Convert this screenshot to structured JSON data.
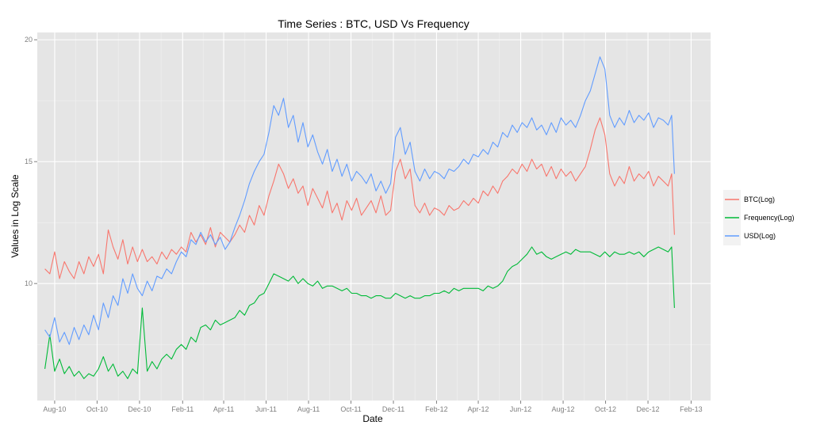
{
  "chart_data": {
    "type": "line",
    "title": "Time Series : BTC, USD Vs Frequency",
    "xlabel": "Date",
    "ylabel": "Values in Log Scale",
    "xlim": [
      "2010-07-07",
      "2013-03-01"
    ],
    "ylim": [
      5.2,
      20.3
    ],
    "x_ticks": [
      {
        "date": "2010-08-01",
        "label": "Aug-10"
      },
      {
        "date": "2010-10-01",
        "label": "Oct-10"
      },
      {
        "date": "2010-12-01",
        "label": "Dec-10"
      },
      {
        "date": "2011-02-01",
        "label": "Feb-11"
      },
      {
        "date": "2011-04-01",
        "label": "Apr-11"
      },
      {
        "date": "2011-06-01",
        "label": "Jun-11"
      },
      {
        "date": "2011-08-01",
        "label": "Aug-11"
      },
      {
        "date": "2011-10-01",
        "label": "Oct-11"
      },
      {
        "date": "2011-12-01",
        "label": "Dec-11"
      },
      {
        "date": "2012-02-01",
        "label": "Feb-12"
      },
      {
        "date": "2012-04-01",
        "label": "Apr-12"
      },
      {
        "date": "2012-06-01",
        "label": "Jun-12"
      },
      {
        "date": "2012-08-01",
        "label": "Aug-12"
      },
      {
        "date": "2012-10-01",
        "label": "Oct-12"
      },
      {
        "date": "2012-12-01",
        "label": "Dec-12"
      },
      {
        "date": "2013-02-01",
        "label": "Feb-13"
      }
    ],
    "y_ticks": [
      10,
      15,
      20
    ],
    "grid": true,
    "legend_position": "right",
    "series": [
      {
        "name": "BTC(Log)",
        "color": "#f8766d",
        "x": [
          "2010-07-18",
          "2010-07-25",
          "2010-08-01",
          "2010-08-08",
          "2010-08-15",
          "2010-08-22",
          "2010-08-29",
          "2010-09-05",
          "2010-09-12",
          "2010-09-19",
          "2010-09-26",
          "2010-10-03",
          "2010-10-10",
          "2010-10-17",
          "2010-10-24",
          "2010-10-31",
          "2010-11-07",
          "2010-11-14",
          "2010-11-21",
          "2010-11-28",
          "2010-12-05",
          "2010-12-12",
          "2010-12-19",
          "2010-12-26",
          "2011-01-02",
          "2011-01-09",
          "2011-01-16",
          "2011-01-23",
          "2011-01-30",
          "2011-02-06",
          "2011-02-13",
          "2011-02-20",
          "2011-02-27",
          "2011-03-06",
          "2011-03-13",
          "2011-03-20",
          "2011-03-27",
          "2011-04-03",
          "2011-04-10",
          "2011-04-17",
          "2011-04-24",
          "2011-05-01",
          "2011-05-08",
          "2011-05-15",
          "2011-05-22",
          "2011-05-29",
          "2011-06-05",
          "2011-06-12",
          "2011-06-19",
          "2011-06-26",
          "2011-07-03",
          "2011-07-10",
          "2011-07-17",
          "2011-07-24",
          "2011-07-31",
          "2011-08-07",
          "2011-08-14",
          "2011-08-21",
          "2011-08-28",
          "2011-09-04",
          "2011-09-11",
          "2011-09-18",
          "2011-09-25",
          "2011-10-02",
          "2011-10-09",
          "2011-10-16",
          "2011-10-23",
          "2011-10-30",
          "2011-11-06",
          "2011-11-13",
          "2011-11-20",
          "2011-11-27",
          "2011-12-04",
          "2011-12-11",
          "2011-12-18",
          "2011-12-25",
          "2012-01-01",
          "2012-01-08",
          "2012-01-15",
          "2012-01-22",
          "2012-01-29",
          "2012-02-05",
          "2012-02-12",
          "2012-02-19",
          "2012-02-26",
          "2012-03-04",
          "2012-03-11",
          "2012-03-18",
          "2012-03-25",
          "2012-04-01",
          "2012-04-08",
          "2012-04-15",
          "2012-04-22",
          "2012-04-29",
          "2012-05-06",
          "2012-05-13",
          "2012-05-20",
          "2012-05-27",
          "2012-06-03",
          "2012-06-10",
          "2012-06-17",
          "2012-06-24",
          "2012-07-01",
          "2012-07-08",
          "2012-07-15",
          "2012-07-22",
          "2012-07-29",
          "2012-08-05",
          "2012-08-12",
          "2012-08-19",
          "2012-08-26",
          "2012-09-02",
          "2012-09-09",
          "2012-09-16",
          "2012-09-23",
          "2012-09-30",
          "2012-10-07",
          "2012-10-14",
          "2012-10-21",
          "2012-10-28",
          "2012-11-04",
          "2012-11-11",
          "2012-11-18",
          "2012-11-25",
          "2012-12-02",
          "2012-12-09",
          "2012-12-16",
          "2012-12-23",
          "2012-12-30",
          "2013-01-04",
          "2013-01-08"
        ],
        "values": [
          10.6,
          10.4,
          11.3,
          10.2,
          10.9,
          10.5,
          10.2,
          10.9,
          10.4,
          11.1,
          10.7,
          11.2,
          10.4,
          12.2,
          11.5,
          11.0,
          11.8,
          10.8,
          11.5,
          10.9,
          11.4,
          10.9,
          11.1,
          10.8,
          11.3,
          11.0,
          11.4,
          11.2,
          11.5,
          11.3,
          12.1,
          11.7,
          12.0,
          11.6,
          12.3,
          11.5,
          12.1,
          11.9,
          11.7,
          12.0,
          12.4,
          12.1,
          12.8,
          12.4,
          13.2,
          12.8,
          13.6,
          14.2,
          14.9,
          14.5,
          13.9,
          14.3,
          13.7,
          14.0,
          13.2,
          13.9,
          13.5,
          13.1,
          13.8,
          12.9,
          13.3,
          12.6,
          13.4,
          13.0,
          13.5,
          12.8,
          13.1,
          13.4,
          12.9,
          13.6,
          12.8,
          13.0,
          14.6,
          15.1,
          14.3,
          14.7,
          13.2,
          12.9,
          13.3,
          12.8,
          13.1,
          13.0,
          12.8,
          13.2,
          13.0,
          13.1,
          13.4,
          13.2,
          13.5,
          13.3,
          13.8,
          13.6,
          14.0,
          13.7,
          14.2,
          14.4,
          14.7,
          14.5,
          14.9,
          14.6,
          15.1,
          14.7,
          14.9,
          14.4,
          14.8,
          14.3,
          14.7,
          14.4,
          14.6,
          14.2,
          14.5,
          14.8,
          15.5,
          16.3,
          16.8,
          16.1,
          14.5,
          14.0,
          14.4,
          14.1,
          14.8,
          14.2,
          14.5,
          14.3,
          14.6,
          14.0,
          14.4,
          14.2,
          14.0,
          14.5,
          12.0
        ]
      },
      {
        "name": "Frequency(Log)",
        "color": "#00ba38",
        "x": [
          "2010-07-18",
          "2010-07-25",
          "2010-08-01",
          "2010-08-08",
          "2010-08-15",
          "2010-08-22",
          "2010-08-29",
          "2010-09-05",
          "2010-09-12",
          "2010-09-19",
          "2010-09-26",
          "2010-10-03",
          "2010-10-10",
          "2010-10-17",
          "2010-10-24",
          "2010-10-31",
          "2010-11-07",
          "2010-11-14",
          "2010-11-21",
          "2010-11-28",
          "2010-12-05",
          "2010-12-12",
          "2010-12-19",
          "2010-12-26",
          "2011-01-02",
          "2011-01-09",
          "2011-01-16",
          "2011-01-23",
          "2011-01-30",
          "2011-02-06",
          "2011-02-13",
          "2011-02-20",
          "2011-02-27",
          "2011-03-06",
          "2011-03-13",
          "2011-03-20",
          "2011-03-27",
          "2011-04-03",
          "2011-04-10",
          "2011-04-17",
          "2011-04-24",
          "2011-05-01",
          "2011-05-08",
          "2011-05-15",
          "2011-05-22",
          "2011-05-29",
          "2011-06-05",
          "2011-06-12",
          "2011-06-19",
          "2011-06-26",
          "2011-07-03",
          "2011-07-10",
          "2011-07-17",
          "2011-07-24",
          "2011-07-31",
          "2011-08-07",
          "2011-08-14",
          "2011-08-21",
          "2011-08-28",
          "2011-09-04",
          "2011-09-11",
          "2011-09-18",
          "2011-09-25",
          "2011-10-02",
          "2011-10-09",
          "2011-10-16",
          "2011-10-23",
          "2011-10-30",
          "2011-11-06",
          "2011-11-13",
          "2011-11-20",
          "2011-11-27",
          "2011-12-04",
          "2011-12-11",
          "2011-12-18",
          "2011-12-25",
          "2012-01-01",
          "2012-01-08",
          "2012-01-15",
          "2012-01-22",
          "2012-01-29",
          "2012-02-05",
          "2012-02-12",
          "2012-02-19",
          "2012-02-26",
          "2012-03-04",
          "2012-03-11",
          "2012-03-18",
          "2012-03-25",
          "2012-04-01",
          "2012-04-08",
          "2012-04-15",
          "2012-04-22",
          "2012-04-29",
          "2012-05-06",
          "2012-05-13",
          "2012-05-20",
          "2012-05-27",
          "2012-06-03",
          "2012-06-10",
          "2012-06-17",
          "2012-06-24",
          "2012-07-01",
          "2012-07-08",
          "2012-07-15",
          "2012-07-22",
          "2012-07-29",
          "2012-08-05",
          "2012-08-12",
          "2012-08-19",
          "2012-08-26",
          "2012-09-02",
          "2012-09-09",
          "2012-09-16",
          "2012-09-23",
          "2012-09-30",
          "2012-10-07",
          "2012-10-14",
          "2012-10-21",
          "2012-10-28",
          "2012-11-04",
          "2012-11-11",
          "2012-11-18",
          "2012-11-25",
          "2012-12-02",
          "2012-12-09",
          "2012-12-16",
          "2012-12-23",
          "2012-12-30",
          "2013-01-04",
          "2013-01-08"
        ],
        "values": [
          6.5,
          7.9,
          6.4,
          6.9,
          6.3,
          6.6,
          6.2,
          6.4,
          6.1,
          6.3,
          6.2,
          6.5,
          7.0,
          6.4,
          6.7,
          6.2,
          6.4,
          6.1,
          6.5,
          6.3,
          9.0,
          6.4,
          6.8,
          6.5,
          6.9,
          7.1,
          6.9,
          7.3,
          7.5,
          7.3,
          7.8,
          7.6,
          8.2,
          8.3,
          8.1,
          8.5,
          8.3,
          8.4,
          8.5,
          8.6,
          8.9,
          8.7,
          9.1,
          9.2,
          9.5,
          9.6,
          10.0,
          10.4,
          10.3,
          10.2,
          10.1,
          10.3,
          10.0,
          10.2,
          10.0,
          9.9,
          10.1,
          9.8,
          9.9,
          9.9,
          9.8,
          9.7,
          9.8,
          9.6,
          9.6,
          9.5,
          9.5,
          9.4,
          9.5,
          9.5,
          9.4,
          9.4,
          9.6,
          9.5,
          9.4,
          9.5,
          9.4,
          9.4,
          9.5,
          9.5,
          9.6,
          9.6,
          9.7,
          9.6,
          9.8,
          9.7,
          9.8,
          9.8,
          9.8,
          9.8,
          9.7,
          9.9,
          9.8,
          9.9,
          10.1,
          10.5,
          10.7,
          10.8,
          11.0,
          11.2,
          11.5,
          11.2,
          11.3,
          11.1,
          11.0,
          11.1,
          11.2,
          11.3,
          11.2,
          11.4,
          11.3,
          11.3,
          11.3,
          11.2,
          11.1,
          11.3,
          11.1,
          11.3,
          11.2,
          11.2,
          11.3,
          11.2,
          11.3,
          11.1,
          11.3,
          11.4,
          11.5,
          11.4,
          11.3,
          11.5,
          9.0
        ]
      },
      {
        "name": "USD(Log)",
        "color": "#619cff",
        "x": [
          "2010-07-18",
          "2010-07-25",
          "2010-08-01",
          "2010-08-08",
          "2010-08-15",
          "2010-08-22",
          "2010-08-29",
          "2010-09-05",
          "2010-09-12",
          "2010-09-19",
          "2010-09-26",
          "2010-10-03",
          "2010-10-10",
          "2010-10-17",
          "2010-10-24",
          "2010-10-31",
          "2010-11-07",
          "2010-11-14",
          "2010-11-21",
          "2010-11-28",
          "2010-12-05",
          "2010-12-12",
          "2010-12-19",
          "2010-12-26",
          "2011-01-02",
          "2011-01-09",
          "2011-01-16",
          "2011-01-23",
          "2011-01-30",
          "2011-02-06",
          "2011-02-13",
          "2011-02-20",
          "2011-02-27",
          "2011-03-06",
          "2011-03-13",
          "2011-03-20",
          "2011-03-27",
          "2011-04-03",
          "2011-04-10",
          "2011-04-17",
          "2011-04-24",
          "2011-05-01",
          "2011-05-08",
          "2011-05-15",
          "2011-05-22",
          "2011-05-29",
          "2011-06-05",
          "2011-06-12",
          "2011-06-19",
          "2011-06-26",
          "2011-07-03",
          "2011-07-10",
          "2011-07-17",
          "2011-07-24",
          "2011-07-31",
          "2011-08-07",
          "2011-08-14",
          "2011-08-21",
          "2011-08-28",
          "2011-09-04",
          "2011-09-11",
          "2011-09-18",
          "2011-09-25",
          "2011-10-02",
          "2011-10-09",
          "2011-10-16",
          "2011-10-23",
          "2011-10-30",
          "2011-11-06",
          "2011-11-13",
          "2011-11-20",
          "2011-11-27",
          "2011-12-04",
          "2011-12-11",
          "2011-12-18",
          "2011-12-25",
          "2012-01-01",
          "2012-01-08",
          "2012-01-15",
          "2012-01-22",
          "2012-01-29",
          "2012-02-05",
          "2012-02-12",
          "2012-02-19",
          "2012-02-26",
          "2012-03-04",
          "2012-03-11",
          "2012-03-18",
          "2012-03-25",
          "2012-04-01",
          "2012-04-08",
          "2012-04-15",
          "2012-04-22",
          "2012-04-29",
          "2012-05-06",
          "2012-05-13",
          "2012-05-20",
          "2012-05-27",
          "2012-06-03",
          "2012-06-10",
          "2012-06-17",
          "2012-06-24",
          "2012-07-01",
          "2012-07-08",
          "2012-07-15",
          "2012-07-22",
          "2012-07-29",
          "2012-08-05",
          "2012-08-12",
          "2012-08-19",
          "2012-08-26",
          "2012-09-02",
          "2012-09-09",
          "2012-09-16",
          "2012-09-23",
          "2012-09-30",
          "2012-10-07",
          "2012-10-14",
          "2012-10-21",
          "2012-10-28",
          "2012-11-04",
          "2012-11-11",
          "2012-11-18",
          "2012-11-25",
          "2012-12-02",
          "2012-12-09",
          "2012-12-16",
          "2012-12-23",
          "2012-12-30",
          "2013-01-04",
          "2013-01-08"
        ],
        "values": [
          8.1,
          7.8,
          8.6,
          7.6,
          8.0,
          7.5,
          8.2,
          7.7,
          8.3,
          7.9,
          8.7,
          8.1,
          9.2,
          8.6,
          9.5,
          9.1,
          10.2,
          9.6,
          10.4,
          9.8,
          9.5,
          10.1,
          9.7,
          10.3,
          10.2,
          10.6,
          10.4,
          10.9,
          11.3,
          11.1,
          11.8,
          11.6,
          12.1,
          11.7,
          12.0,
          11.6,
          11.9,
          11.4,
          11.7,
          12.3,
          12.8,
          13.4,
          14.1,
          14.6,
          15.0,
          15.3,
          16.2,
          17.3,
          16.9,
          17.6,
          16.4,
          16.9,
          15.8,
          16.6,
          15.6,
          16.1,
          15.4,
          14.9,
          15.5,
          14.6,
          15.1,
          14.4,
          14.9,
          14.2,
          14.6,
          14.4,
          14.1,
          14.5,
          13.8,
          14.2,
          13.7,
          14.1,
          16.0,
          16.4,
          15.3,
          15.8,
          14.6,
          14.2,
          14.7,
          14.3,
          14.6,
          14.5,
          14.3,
          14.7,
          14.6,
          14.8,
          15.1,
          14.9,
          15.3,
          15.2,
          15.5,
          15.3,
          15.8,
          15.6,
          16.2,
          16.0,
          16.5,
          16.2,
          16.6,
          16.4,
          16.8,
          16.3,
          16.5,
          16.1,
          16.6,
          16.2,
          16.8,
          16.5,
          16.7,
          16.4,
          16.9,
          17.5,
          17.9,
          18.6,
          19.3,
          18.8,
          16.9,
          16.4,
          16.8,
          16.5,
          17.1,
          16.6,
          16.9,
          16.7,
          17.0,
          16.4,
          16.8,
          16.7,
          16.5,
          16.9,
          14.5
        ]
      }
    ]
  }
}
